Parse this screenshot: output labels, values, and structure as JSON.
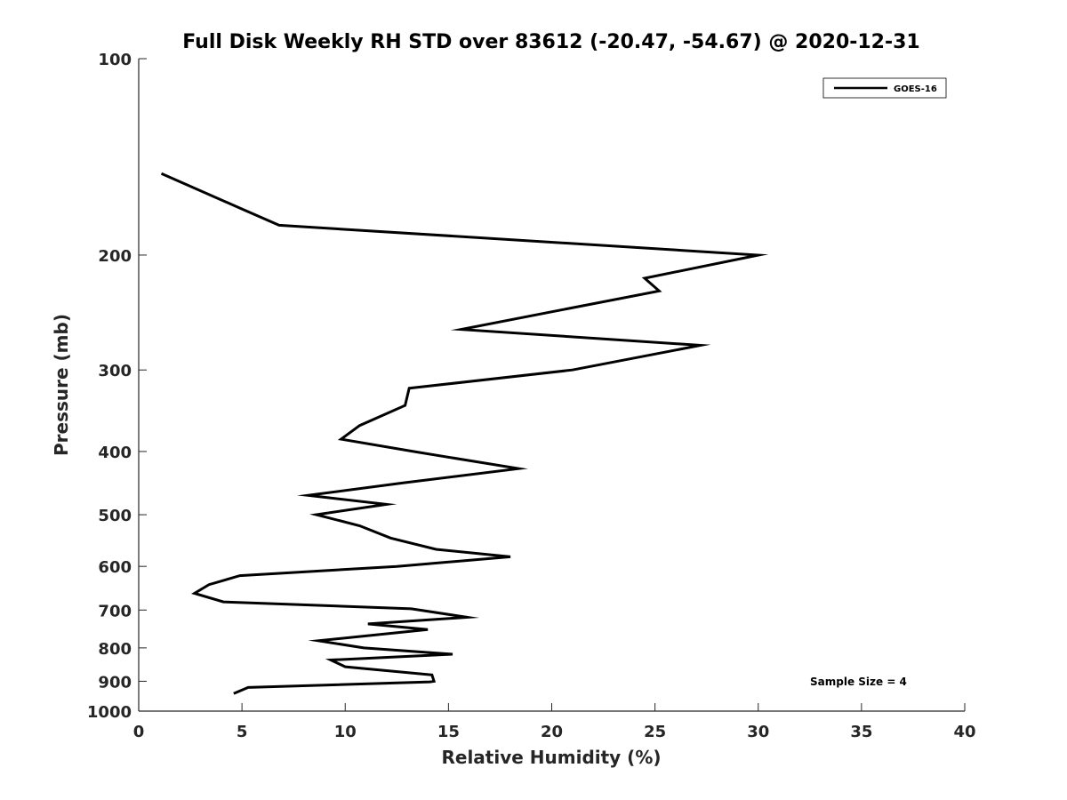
{
  "chart_data": {
    "type": "line",
    "title": "Full Disk Weekly RH STD over 83612 (-20.47, -54.67) @ 2020-12-31",
    "xlabel": "Relative Humidity (%)",
    "ylabel": "Pressure (mb)",
    "xlim": [
      0,
      40
    ],
    "ylim": [
      1000,
      100
    ],
    "yscale": "log",
    "xticks": [
      0,
      5,
      10,
      15,
      20,
      25,
      30,
      35,
      40
    ],
    "yticks": [
      100,
      200,
      300,
      400,
      500,
      600,
      700,
      800,
      900,
      1000
    ],
    "xtick_labels": [
      "0",
      "5",
      "10",
      "15",
      "20",
      "25",
      "30",
      "35",
      "40"
    ],
    "ytick_labels": [
      "100",
      "200",
      "300",
      "400",
      "500",
      "600",
      "700",
      "800",
      "900",
      "1000"
    ],
    "grid": false,
    "legend_position": "top-right",
    "series": [
      {
        "name": "GOES-16",
        "color": "#000000",
        "x": [
          1.1,
          5.0,
          6.8,
          30.0,
          24.5,
          25.2,
          15.6,
          27.2,
          21.0,
          13.1,
          12.9,
          10.7,
          9.8,
          13.3,
          18.4,
          12.8,
          8.2,
          12.0,
          8.6,
          10.7,
          12.2,
          14.4,
          18.0,
          12.5,
          4.9,
          3.4,
          2.7,
          4.1,
          13.2,
          15.9,
          11.1,
          14.0,
          8.7,
          10.9,
          15.2,
          9.3,
          10.0,
          14.2,
          14.3,
          14.1,
          5.3,
          4.6
        ],
        "y": [
          150,
          170,
          180,
          200,
          217,
          227,
          260,
          275,
          300,
          320,
          340,
          365,
          383,
          400,
          425,
          447,
          467,
          482,
          500,
          520,
          543,
          565,
          580,
          600,
          620,
          640,
          660,
          680,
          697,
          718,
          735,
          750,
          780,
          800,
          818,
          835,
          855,
          880,
          900,
          902,
          920,
          940
        ]
      }
    ],
    "annotations": [
      "Sample Size = 4"
    ]
  }
}
